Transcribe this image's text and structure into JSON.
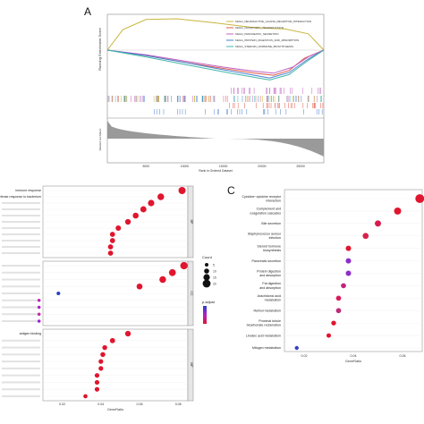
{
  "panels": {
    "a": "A",
    "c": "C"
  },
  "chart_data": [
    {
      "type": "line",
      "panel": "A",
      "ylabel": "Running Enrichment Score",
      "ylabel2": "Ranked List Metric",
      "xlabel": "Rank in Ordered Dataset",
      "legend_position": "top-right",
      "x_ticks": [
        "5000",
        "10000",
        "15000",
        "20000",
        "25000"
      ],
      "series": [
        {
          "name": "KEGG_NEUROACTIVE_LIGAND_RECEPTOR_INTERACTION",
          "color": "#c9b53c",
          "points": [
            [
              0,
              0.0
            ],
            [
              2000,
              0.3
            ],
            [
              5000,
              0.45
            ],
            [
              9000,
              0.46
            ],
            [
              14000,
              0.4
            ],
            [
              19000,
              0.33
            ],
            [
              23000,
              0.31
            ],
            [
              26000,
              0.24
            ],
            [
              28000,
              0.0
            ]
          ]
        },
        {
          "name": "KEGG_OLFACTORY_TRANSDUCTION",
          "color": "#e05a4a",
          "points": [
            [
              0,
              0.0
            ],
            [
              5000,
              -0.08
            ],
            [
              10000,
              -0.18
            ],
            [
              15000,
              -0.27
            ],
            [
              19000,
              -0.34
            ],
            [
              21500,
              -0.37
            ],
            [
              23500,
              -0.3
            ],
            [
              25500,
              -0.12
            ],
            [
              28000,
              0.0
            ]
          ]
        },
        {
          "name": "KEGG_PANCREATIC_SECRETION",
          "color": "#c060c0",
          "points": [
            [
              0,
              0.0
            ],
            [
              5000,
              -0.07
            ],
            [
              10000,
              -0.16
            ],
            [
              15000,
              -0.25
            ],
            [
              19000,
              -0.31
            ],
            [
              21500,
              -0.34
            ],
            [
              24000,
              -0.25
            ],
            [
              26000,
              -0.1
            ],
            [
              28000,
              0.0
            ]
          ]
        },
        {
          "name": "KEGG_PROTEIN_DIGESTION_AND_ABSORPTION",
          "color": "#4a7fd0",
          "points": [
            [
              0,
              0.0
            ],
            [
              5000,
              -0.08
            ],
            [
              10000,
              -0.18
            ],
            [
              15000,
              -0.29
            ],
            [
              19000,
              -0.37
            ],
            [
              21000,
              -0.41
            ],
            [
              23500,
              -0.33
            ],
            [
              26000,
              -0.13
            ],
            [
              28000,
              0.0
            ]
          ]
        },
        {
          "name": "KEGG_STEROID_HORMONE_BIOSYNTHESIS",
          "color": "#3fb7a8",
          "points": [
            [
              0,
              0.0
            ],
            [
              5000,
              -0.1
            ],
            [
              10000,
              -0.21
            ],
            [
              15000,
              -0.32
            ],
            [
              19000,
              -0.4
            ],
            [
              21000,
              -0.44
            ],
            [
              23500,
              -0.36
            ],
            [
              26000,
              -0.15
            ],
            [
              28000,
              0.0
            ]
          ]
        }
      ]
    },
    {
      "type": "scatter",
      "panel": "B",
      "xlabel": "GeneRatio",
      "x_ticks": [
        "0.02",
        "0.04",
        "0.06",
        "0.08"
      ],
      "xlim": [
        0.01,
        0.085
      ],
      "size_legend_title": "Count",
      "size_legend_values": [
        "5",
        "10",
        "15",
        "20"
      ],
      "color_legend_title": "p.adjust",
      "facets": [
        {
          "name": "BP",
          "terms": [
            {
              "label": "immune response",
              "x": 0.082,
              "count": 20
            },
            {
              "label": "defense response to bacterium",
              "x": 0.071,
              "count": 18
            },
            {
              "label": "",
              "x": 0.066,
              "count": 17
            },
            {
              "label": "",
              "x": 0.062,
              "count": 16
            },
            {
              "label": "",
              "x": 0.058,
              "count": 15
            },
            {
              "label": "",
              "x": 0.054,
              "count": 14
            },
            {
              "label": "",
              "x": 0.049,
              "count": 13
            },
            {
              "label": "",
              "x": 0.046,
              "count": 12
            },
            {
              "label": "",
              "x": 0.046,
              "count": 12
            },
            {
              "label": "",
              "x": 0.045,
              "count": 12
            },
            {
              "label": "",
              "x": 0.045,
              "count": 12
            }
          ]
        },
        {
          "name": "CC",
          "terms": [
            {
              "label": "",
              "x": 0.083,
              "count": 21
            },
            {
              "label": "",
              "x": 0.077,
              "count": 19
            },
            {
              "label": "",
              "x": 0.072,
              "count": 18
            },
            {
              "label": "",
              "x": 0.06,
              "count": 15
            },
            {
              "label": "",
              "x": 0.018,
              "count": 6
            },
            {
              "label": "",
              "x": 0.008,
              "count": 4
            },
            {
              "label": "",
              "x": 0.008,
              "count": 4
            },
            {
              "label": "",
              "x": 0.008,
              "count": 4
            },
            {
              "label": "",
              "x": 0.008,
              "count": 4
            }
          ]
        },
        {
          "name": "MF",
          "terms": [
            {
              "label": "antigen binding",
              "x": 0.054,
              "count": 14
            },
            {
              "label": "",
              "x": 0.046,
              "count": 12
            },
            {
              "label": "",
              "x": 0.042,
              "count": 11
            },
            {
              "label": "",
              "x": 0.041,
              "count": 11
            },
            {
              "label": "",
              "x": 0.04,
              "count": 10
            },
            {
              "label": "",
              "x": 0.04,
              "count": 10
            },
            {
              "label": "",
              "x": 0.038,
              "count": 10
            },
            {
              "label": "",
              "x": 0.038,
              "count": 10
            },
            {
              "label": "",
              "x": 0.038,
              "count": 10
            },
            {
              "label": "",
              "x": 0.032,
              "count": 8
            }
          ]
        }
      ]
    },
    {
      "type": "scatter",
      "panel": "C",
      "xlabel": "GeneRatio",
      "x_ticks": [
        "0.02",
        "0.04",
        "0.06"
      ],
      "xlim": [
        0.012,
        0.068
      ],
      "terms": [
        {
          "label": "Cytokine−cytokine receptor interaction",
          "x": 0.067,
          "count": 22,
          "color": "#e0152e"
        },
        {
          "label": "Complement and coagulation cascades",
          "x": 0.058,
          "count": 16,
          "color": "#e0152e"
        },
        {
          "label": "Bile secretion",
          "x": 0.05,
          "count": 13,
          "color": "#d81b4e"
        },
        {
          "label": "Staphylococcus aureus infection",
          "x": 0.045,
          "count": 12,
          "color": "#d8234a"
        },
        {
          "label": "Steroid hormone biosynthesis",
          "x": 0.038,
          "count": 10,
          "color": "#e0152e"
        },
        {
          "label": "Pancreatic secretion",
          "x": 0.038,
          "count": 10,
          "color": "#8a2fc9"
        },
        {
          "label": "Protein digestion and absorption",
          "x": 0.038,
          "count": 10,
          "color": "#8a2fc9"
        },
        {
          "label": "Fat digestion and absorption",
          "x": 0.036,
          "count": 9,
          "color": "#c0247a"
        },
        {
          "label": "Arachidonic acid metabolism",
          "x": 0.034,
          "count": 9,
          "color": "#d81b5e"
        },
        {
          "label": "Retinol metabolism",
          "x": 0.034,
          "count": 9,
          "color": "#c02a78"
        },
        {
          "label": "Proximal tubule bicarbonate reclamation",
          "x": 0.032,
          "count": 8,
          "color": "#e0152e"
        },
        {
          "label": "Linoleic acid metabolism",
          "x": 0.03,
          "count": 7,
          "color": "#e0152e"
        },
        {
          "label": "Mitogen metabolism",
          "x": 0.017,
          "count": 5,
          "color": "#3a3fc7"
        }
      ]
    }
  ]
}
